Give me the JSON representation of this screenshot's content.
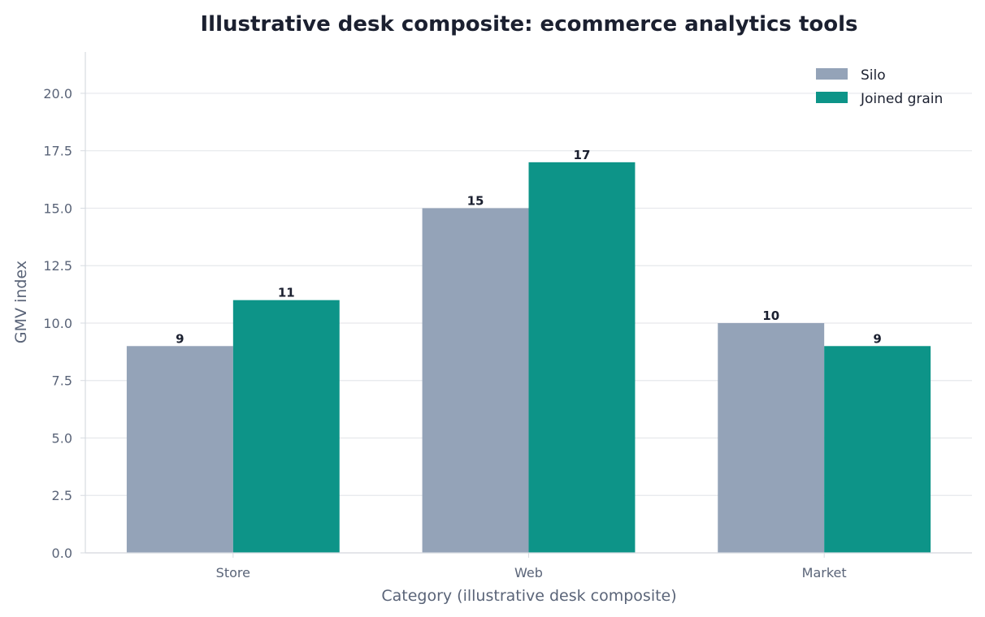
{
  "chart_data": {
    "type": "bar",
    "title": "Illustrative desk composite: ecommerce analytics tools",
    "xlabel": "Category (illustrative desk composite)",
    "ylabel": "GMV index",
    "categories": [
      "Store",
      "Web",
      "Market"
    ],
    "series": [
      {
        "name": "Silo",
        "values": [
          9,
          15,
          10
        ],
        "color": "#94a3b8"
      },
      {
        "name": "Joined grain",
        "values": [
          11,
          17,
          9
        ],
        "color": "#0d9488"
      }
    ],
    "ylim": [
      0,
      21.8
    ],
    "yticks": [
      "0.0",
      "2.5",
      "5.0",
      "7.5",
      "10.0",
      "12.5",
      "15.0",
      "17.5",
      "20.0"
    ],
    "grid": "horizontal",
    "legend": "top-right",
    "colors": {
      "grid": "#e6e8ec",
      "axis": "#d7dbe1",
      "text": "#1b2030",
      "muted_text": "#5a6478"
    }
  }
}
